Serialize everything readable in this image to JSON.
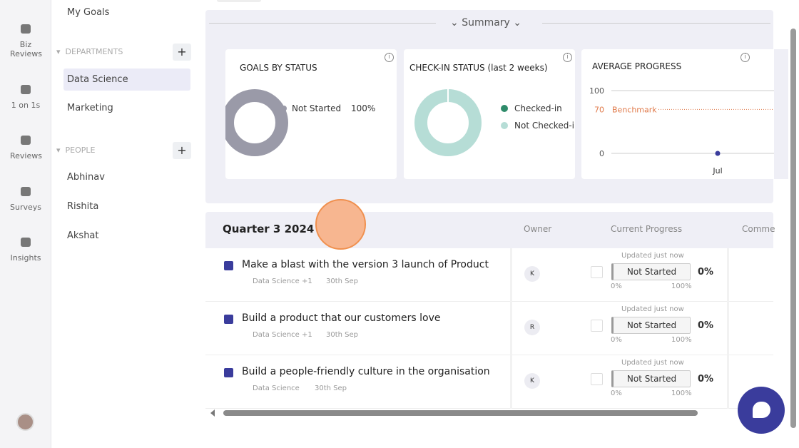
{
  "sidebar": {
    "items": [
      "Biz Reviews",
      "1 on 1s",
      "Reviews",
      "Surveys",
      "Insights"
    ]
  },
  "nav": {
    "my_goals": "My Goals",
    "departments": {
      "title": "DEPARTMENTS",
      "items": [
        "Data Science",
        "Marketing"
      ]
    },
    "people": {
      "title": "PEOPLE",
      "items": [
        "Abhinav",
        "Rishita",
        "Akshat"
      ]
    }
  },
  "summary": {
    "title": "Summary",
    "goals_by_status": {
      "title": "GOALS BY STATUS",
      "legend": [
        {
          "label": "Not Started",
          "value": "100%"
        }
      ]
    },
    "checkin_status": {
      "title": "CHECK-IN STATUS (last 2 weeks)",
      "legend": [
        "Checked-in",
        "Not Checked-in"
      ]
    },
    "average_progress": {
      "title": "AVERAGE PROGRESS",
      "ylim": [
        0,
        100
      ],
      "yticks": [
        0,
        100
      ],
      "benchmark": {
        "value": 70,
        "label": "Benchmark"
      },
      "categories": [
        "Jul"
      ],
      "values": [
        0
      ]
    }
  },
  "quarter": {
    "title": "Quarter 3 2024",
    "columns": [
      "Owner",
      "Current Progress",
      "Comme"
    ],
    "rows": [
      {
        "title": "Make a blast with the version 3 launch of Product",
        "department": "Data Science +1",
        "due": "30th Sep",
        "owner": "K",
        "updated": "Updated just now",
        "status": "Not Started",
        "progress": "0%",
        "min": "0%",
        "max": "100%"
      },
      {
        "title": "Build a product that our customers love",
        "department": "Data Science +1",
        "due": "30th Sep",
        "owner": "R",
        "updated": "Updated just now",
        "status": "Not Started",
        "progress": "0%",
        "min": "0%",
        "max": "100%"
      },
      {
        "title": "Build a people-friendly culture in the organisation",
        "department": "Data Science",
        "due": "30th Sep",
        "owner": "K",
        "updated": "Updated just now",
        "status": "Not Started",
        "progress": "0%",
        "min": "0%",
        "max": "100%"
      }
    ]
  }
}
